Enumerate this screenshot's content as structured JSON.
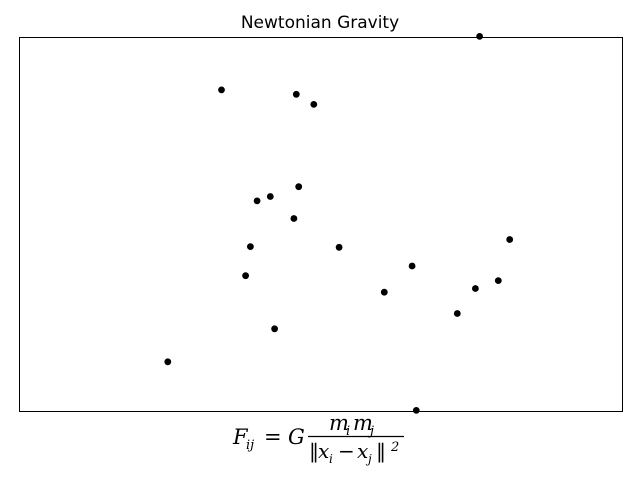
{
  "chart_data": {
    "type": "scatter",
    "title": "Newtonian Gravity",
    "xlabel": "",
    "ylabel": "",
    "xlim": [
      0,
      1
    ],
    "ylim": [
      0,
      1
    ],
    "grid": false,
    "show_ticks": false,
    "marker_color": "#000000",
    "points": [
      {
        "x": 0.335,
        "y": 0.86
      },
      {
        "x": 0.459,
        "y": 0.848
      },
      {
        "x": 0.488,
        "y": 0.821
      },
      {
        "x": 0.463,
        "y": 0.601
      },
      {
        "x": 0.416,
        "y": 0.575
      },
      {
        "x": 0.394,
        "y": 0.563
      },
      {
        "x": 0.455,
        "y": 0.516
      },
      {
        "x": 0.383,
        "y": 0.441
      },
      {
        "x": 0.53,
        "y": 0.439
      },
      {
        "x": 0.813,
        "y": 0.46
      },
      {
        "x": 0.651,
        "y": 0.389
      },
      {
        "x": 0.375,
        "y": 0.363
      },
      {
        "x": 0.794,
        "y": 0.35
      },
      {
        "x": 0.756,
        "y": 0.329
      },
      {
        "x": 0.605,
        "y": 0.319
      },
      {
        "x": 0.726,
        "y": 0.262
      },
      {
        "x": 0.423,
        "y": 0.221
      },
      {
        "x": 0.246,
        "y": 0.133
      },
      {
        "x": 0.658,
        "y": 0.003
      },
      {
        "x": 0.763,
        "y": 1.003
      }
    ]
  },
  "formula": {
    "lhs_symbol": "F",
    "lhs_subscript": "ij",
    "equals": "=",
    "constant": "G",
    "numerator_symbol_1": "m",
    "numerator_subscript_1": "i",
    "numerator_symbol_2": "m",
    "numerator_subscript_2": "j",
    "denom_open": "‖",
    "denom_var_1": "x",
    "denom_sub_1": "i",
    "denom_minus": "−",
    "denom_var_2": "x",
    "denom_sub_2": "j",
    "denom_close": "‖",
    "denom_power": "2"
  }
}
